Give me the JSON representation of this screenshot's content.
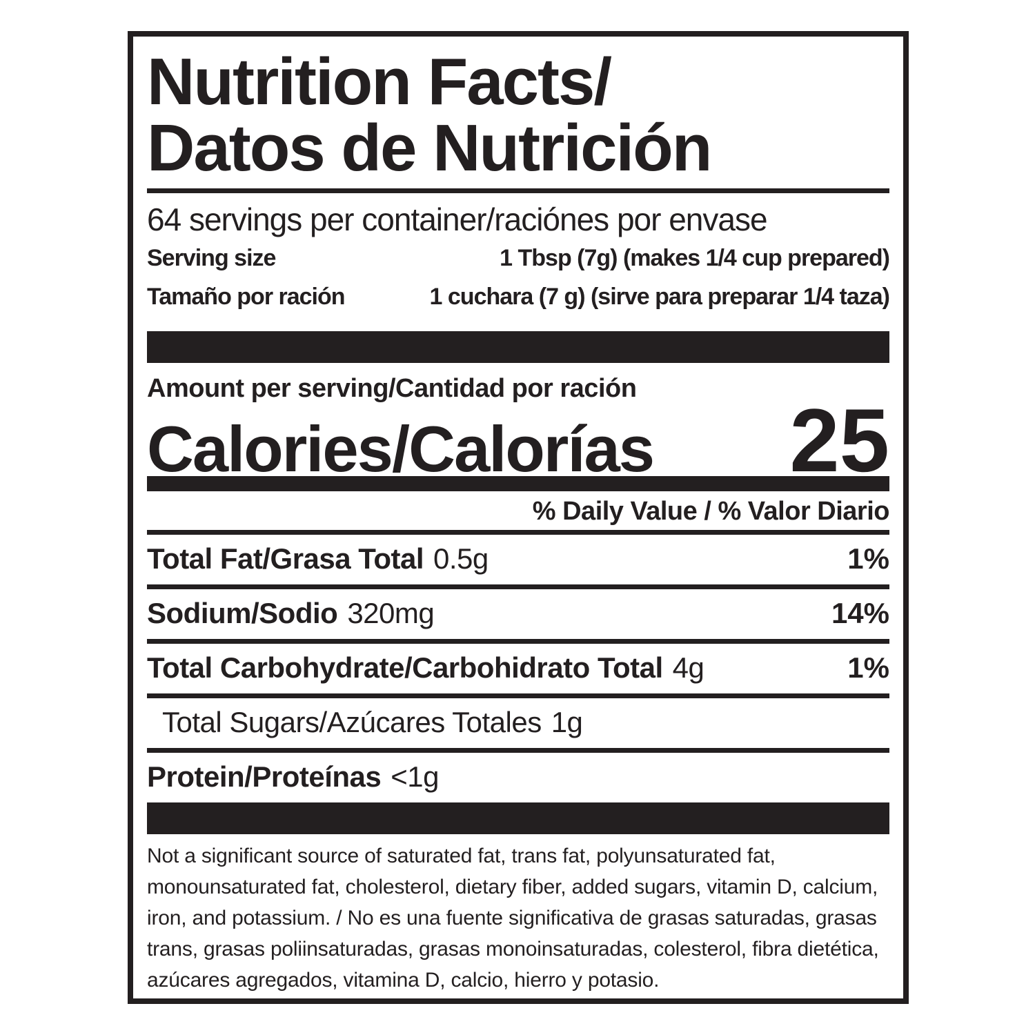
{
  "label": {
    "title_line1": "Nutrition Facts/",
    "title_line2": "Datos de Nutrición",
    "servings_per_container": "64 servings per container/raciónes por envase",
    "serving_size": {
      "label_en": "Serving size",
      "value_en": "1 Tbsp (7g) (makes 1/4 cup prepared)",
      "label_es": "Tamaño por ración",
      "value_es": "1 cuchara (7 g) (sirve para preparar 1/4 taza)"
    },
    "amount_per_serving": "Amount per serving/Cantidad por ración",
    "calories": {
      "label": "Calories/Calorías",
      "value": "25"
    },
    "daily_value_header": "% Daily Value / % Valor Diario",
    "rows": [
      {
        "label": "Total Fat/Grasa Total",
        "amount": "0.5g",
        "dv": "1%"
      },
      {
        "label": "Sodium/Sodio",
        "amount": "320mg",
        "dv": "14%"
      },
      {
        "label": "Total Carbohydrate/Carbohidrato Total",
        "amount": "4g",
        "dv": "1%"
      },
      {
        "label": "Total Sugars/Azúcares Totales",
        "amount": "1g",
        "dv": ""
      },
      {
        "label": "Protein/Proteínas",
        "amount": "<1g",
        "dv": ""
      }
    ],
    "footnote": "Not a significant source of saturated fat, trans fat, polyunsaturated fat, monounsaturated fat, cholesterol, dietary fiber, added sugars, vitamin D, calcium, iron, and potassium. / No es una fuente significativa de grasas saturadas, grasas trans, grasas poliinsaturadas, grasas monoinsaturadas, colesterol, fibra dietética, azúcares agregados, vitamina D, calcio, hierro y potasio."
  },
  "colors": {
    "ink": "#231f20",
    "background": "#ffffff"
  }
}
